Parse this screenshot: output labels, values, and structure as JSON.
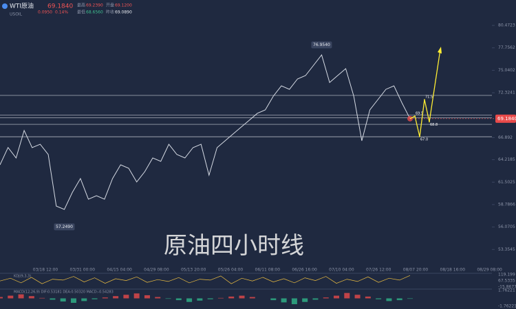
{
  "header": {
    "symbol": "WTI原油",
    "price": "69.1840",
    "code": "USOIL",
    "change": "0.0950",
    "change_pct": "0.14%",
    "stats": [
      {
        "label": "最高",
        "value": "69.2390"
      },
      {
        "label": "开盘",
        "value": "69.1200"
      },
      {
        "label": "最低",
        "value": "68.6560"
      },
      {
        "label": "昨收",
        "value": "69.0890"
      }
    ]
  },
  "chart_data": {
    "type": "line",
    "color": "#d6dbe4",
    "x_labels": [
      "03/18 12:00",
      "03/31 00:00",
      "04/15 04:00",
      "04/29 08:00",
      "05/13 20:00",
      "05/26 04:00",
      "06/11 08:00",
      "06/26 16:00",
      "07/10 04:00",
      "07/26 12:00",
      "08/07 20:00",
      "08/18 16:00",
      "08/29 08:00"
    ],
    "values": [
      63.6,
      65.7,
      64.43,
      67.76,
      65.68,
      66.09,
      64.85,
      58.61,
      58.2,
      60.27,
      61.94,
      59.44,
      59.86,
      59.44,
      61.94,
      63.6,
      63.19,
      61.52,
      62.77,
      64.43,
      64.02,
      66.09,
      64.85,
      64.43,
      65.68,
      66.09,
      62.35,
      65.68,
      66.51,
      67.34,
      68.17,
      69.0,
      69.83,
      70.25,
      71.91,
      73.16,
      72.74,
      73.99,
      74.41,
      75.65,
      76.9,
      73.57,
      74.41,
      75.24,
      71.91,
      66.51,
      70.25,
      71.5,
      72.74,
      73.16,
      71.08,
      69.184
    ],
    "ylim": [
      51.55,
      83.55
    ],
    "yticks": [
      80.4723,
      77.7562,
      75.0402,
      72.3241,
      66.892,
      64.2185,
      61.5025,
      58.7866,
      56.0705,
      53.3545
    ],
    "levels": [
      72.0,
      69.6,
      69.3,
      68.5,
      67.0
    ],
    "last_price_label": "69.1840",
    "high_label": {
      "value": 76.954,
      "label": "76.9540"
    },
    "low_label": {
      "value": 57.249,
      "label": "57.2490"
    },
    "projection": [
      69.5,
      67,
      71.5,
      68.8
    ],
    "projection_labels": [
      "69.5",
      "67.0",
      "71.5",
      "68.8"
    ],
    "watermark": "原油四小时线",
    "indicators": [
      {
        "legend": "KDJ(9,3,3)",
        "ticks": [
          "119.199",
          "67.5335",
          "-15.8677"
        ],
        "ylim": [
          -15.8677,
          119.199
        ],
        "values": [
          50,
          80,
          30,
          90,
          20,
          70,
          60,
          100,
          40,
          85,
          25,
          75,
          55,
          95,
          35,
          65,
          45,
          88,
          30,
          70,
          60,
          105,
          20,
          80,
          50,
          90,
          40,
          75,
          30,
          85,
          55,
          100,
          25,
          70,
          45,
          95,
          35,
          80,
          60,
          110
        ]
      },
      {
        "legend": "MACD(12,26,9) DIF:0.53181 DEA:0.50320 MACD:-0.54283",
        "ticks": [
          "1.76221",
          "-1.76221"
        ],
        "ylim": [
          -1.76221,
          1.76221
        ],
        "values": [
          0.3,
          0.6,
          0.9,
          0.5,
          0.1,
          -0.3,
          -0.7,
          -1.0,
          -0.6,
          -0.2,
          0.2,
          0.5,
          0.8,
          1.1,
          0.7,
          0.3,
          -0.1,
          -0.4,
          -0.8,
          -0.5,
          -0.2,
          0.1,
          0.4,
          0.6,
          0.3,
          0,
          -0.4,
          -0.9,
          -1.3,
          -0.8,
          -0.3,
          0.2,
          0.6,
          1.2,
          0.8,
          0.4,
          -0.2,
          -0.6,
          -0.4,
          -0.1
        ]
      }
    ]
  }
}
